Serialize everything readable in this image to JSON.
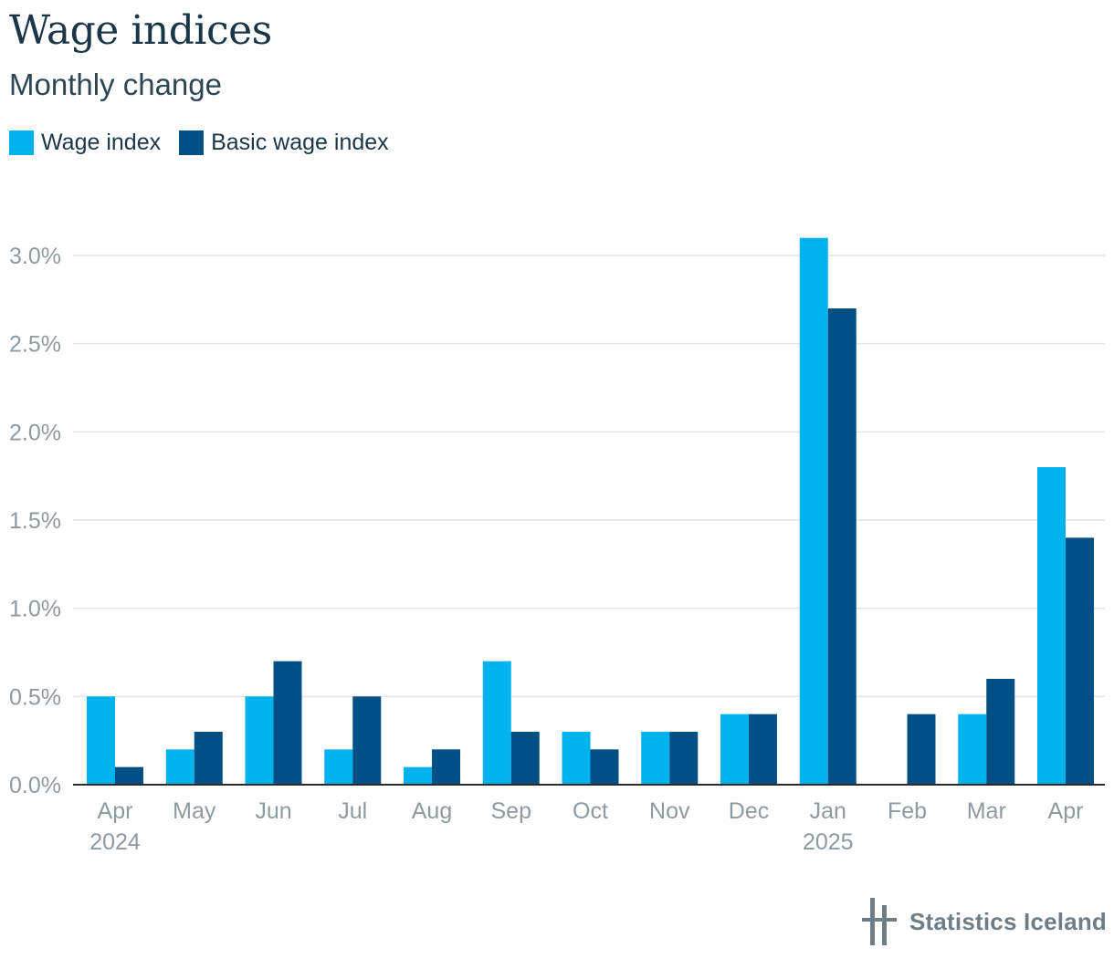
{
  "header": {
    "title": "Wage indices",
    "subtitle": "Monthly change"
  },
  "legend": [
    {
      "label": "Wage index",
      "color": "#00b2ed"
    },
    {
      "label": "Basic wage index",
      "color": "#005086"
    }
  ],
  "chart_data": {
    "type": "bar",
    "title": "Wage indices",
    "subtitle": "Monthly change",
    "categories": [
      "Apr",
      "May",
      "Jun",
      "Jul",
      "Aug",
      "Sep",
      "Oct",
      "Nov",
      "Dec",
      "Jan",
      "Feb",
      "Mar",
      "Apr"
    ],
    "category_sublabels": [
      "2024",
      "",
      "",
      "",
      "",
      "",
      "",
      "",
      "",
      "2025",
      "",
      "",
      ""
    ],
    "series": [
      {
        "name": "Wage index",
        "color": "#00b2ed",
        "values": [
          0.5,
          0.2,
          0.5,
          0.2,
          0.1,
          0.7,
          0.3,
          0.3,
          0.4,
          3.1,
          0.0,
          0.4,
          1.8
        ]
      },
      {
        "name": "Basic wage index",
        "color": "#005086",
        "values": [
          0.1,
          0.3,
          0.7,
          0.5,
          0.2,
          0.3,
          0.2,
          0.3,
          0.4,
          2.7,
          0.4,
          0.6,
          1.4
        ]
      }
    ],
    "ylim": [
      0,
      3.0
    ],
    "yticks": [
      0.0,
      0.5,
      1.0,
      1.5,
      2.0,
      2.5,
      3.0
    ],
    "ytick_labels": [
      "0.0%",
      "0.5%",
      "1.0%",
      "1.5%",
      "2.0%",
      "2.5%",
      "3.0%"
    ],
    "grid": true,
    "legend_position": "top-left"
  },
  "footer": {
    "logo_text": "Statistics Iceland"
  }
}
